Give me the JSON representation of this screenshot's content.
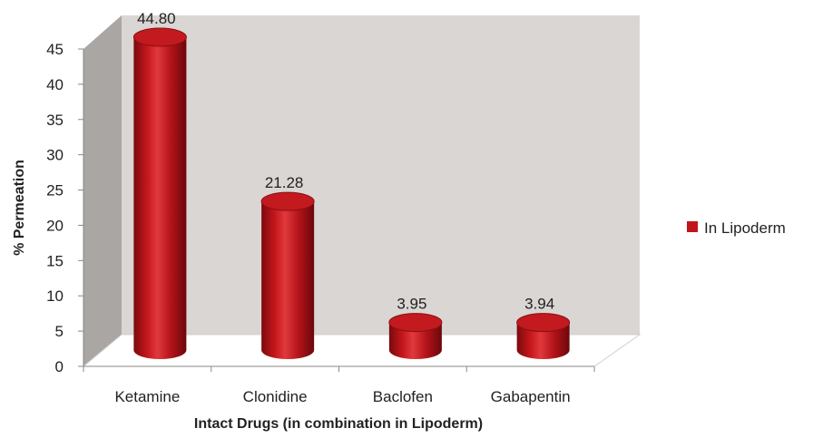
{
  "chart_data": {
    "type": "bar",
    "style": "3d-cylinder",
    "categories": [
      "Ketamine",
      "Clonidine",
      "Baclofen",
      "Gabapentin"
    ],
    "series": [
      {
        "name": "In Lipoderm",
        "values": [
          44.8,
          21.28,
          3.95,
          3.94
        ],
        "color": "#c0161b"
      }
    ],
    "data_labels": [
      "44.80",
      "21.28",
      "3.95",
      "3.94"
    ],
    "xlabel": "Intact Drugs (in combination in Lipoderm)",
    "ylabel": "% Permeation",
    "ylim": [
      0,
      45
    ],
    "yticks": [
      0,
      5,
      10,
      15,
      20,
      25,
      30,
      35,
      40,
      45
    ],
    "grid": false,
    "legend": {
      "position": "right",
      "entries": [
        "In Lipoderm"
      ]
    },
    "wall_color": "#d9d6d4",
    "side_wall_color": "#a9a6a4",
    "floor_color": "#ffffff"
  }
}
